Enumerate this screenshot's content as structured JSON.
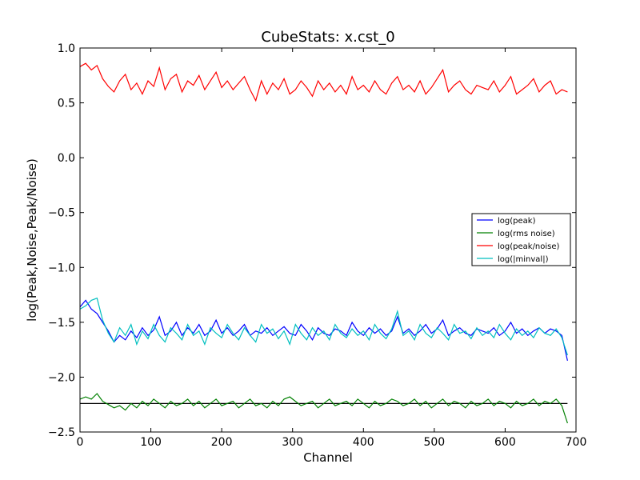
{
  "chart_data": {
    "type": "line",
    "title": "CubeStats: x.cst_0",
    "xlabel": "Channel",
    "ylabel": "log(Peak,Noise,Peak/Noise)",
    "xlim": [
      0,
      700
    ],
    "ylim": [
      -2.5,
      1.0
    ],
    "xticks": [
      0,
      100,
      200,
      300,
      400,
      500,
      600,
      700
    ],
    "yticks": [
      1.0,
      0.5,
      0.0,
      -0.5,
      -1.0,
      -1.5,
      -2.0,
      -2.5
    ],
    "xtick_labels": [
      "0",
      "100",
      "200",
      "300",
      "400",
      "500",
      "600",
      "700"
    ],
    "ytick_labels": [
      "1.0",
      "0.5",
      "0.0",
      "−0.5",
      "−1.0",
      "−1.5",
      "−2.0",
      "−2.5"
    ],
    "grid": false,
    "legend_position": "center-right",
    "series": [
      {
        "name": "log(peak)",
        "color": "#0000ff",
        "x": [
          0,
          8,
          16,
          24,
          32,
          40,
          48,
          56,
          64,
          72,
          80,
          88,
          96,
          104,
          112,
          120,
          128,
          136,
          144,
          152,
          160,
          168,
          176,
          184,
          192,
          200,
          208,
          216,
          224,
          232,
          240,
          248,
          256,
          264,
          272,
          280,
          288,
          296,
          304,
          312,
          320,
          328,
          336,
          344,
          352,
          360,
          368,
          376,
          384,
          392,
          400,
          408,
          416,
          424,
          432,
          440,
          448,
          456,
          464,
          472,
          480,
          488,
          496,
          504,
          512,
          520,
          528,
          536,
          544,
          552,
          560,
          568,
          576,
          584,
          592,
          600,
          608,
          616,
          624,
          632,
          640,
          648,
          656,
          664,
          672,
          680,
          688
        ],
        "y": [
          -1.36,
          -1.3,
          -1.38,
          -1.42,
          -1.5,
          -1.58,
          -1.68,
          -1.62,
          -1.66,
          -1.58,
          -1.64,
          -1.55,
          -1.62,
          -1.57,
          -1.45,
          -1.62,
          -1.58,
          -1.5,
          -1.62,
          -1.55,
          -1.6,
          -1.52,
          -1.62,
          -1.58,
          -1.48,
          -1.6,
          -1.55,
          -1.62,
          -1.58,
          -1.52,
          -1.62,
          -1.58,
          -1.6,
          -1.55,
          -1.62,
          -1.58,
          -1.54,
          -1.6,
          -1.62,
          -1.52,
          -1.58,
          -1.66,
          -1.55,
          -1.6,
          -1.62,
          -1.56,
          -1.58,
          -1.62,
          -1.5,
          -1.58,
          -1.62,
          -1.55,
          -1.6,
          -1.56,
          -1.62,
          -1.58,
          -1.45,
          -1.6,
          -1.56,
          -1.62,
          -1.58,
          -1.52,
          -1.6,
          -1.56,
          -1.48,
          -1.62,
          -1.58,
          -1.55,
          -1.6,
          -1.62,
          -1.56,
          -1.58,
          -1.6,
          -1.55,
          -1.62,
          -1.58,
          -1.5,
          -1.6,
          -1.56,
          -1.62,
          -1.58,
          -1.55,
          -1.6,
          -1.56,
          -1.58,
          -1.62,
          -1.85
        ]
      },
      {
        "name": "log(rms noise)",
        "color": "#008000",
        "x": [
          0,
          8,
          16,
          24,
          32,
          40,
          48,
          56,
          64,
          72,
          80,
          88,
          96,
          104,
          112,
          120,
          128,
          136,
          144,
          152,
          160,
          168,
          176,
          184,
          192,
          200,
          208,
          216,
          224,
          232,
          240,
          248,
          256,
          264,
          272,
          280,
          288,
          296,
          304,
          312,
          320,
          328,
          336,
          344,
          352,
          360,
          368,
          376,
          384,
          392,
          400,
          408,
          416,
          424,
          432,
          440,
          448,
          456,
          464,
          472,
          480,
          488,
          496,
          504,
          512,
          520,
          528,
          536,
          544,
          552,
          560,
          568,
          576,
          584,
          592,
          600,
          608,
          616,
          624,
          632,
          640,
          648,
          656,
          664,
          672,
          680,
          688
        ],
        "y": [
          -2.2,
          -2.18,
          -2.2,
          -2.15,
          -2.22,
          -2.25,
          -2.28,
          -2.26,
          -2.3,
          -2.24,
          -2.28,
          -2.22,
          -2.26,
          -2.2,
          -2.24,
          -2.28,
          -2.22,
          -2.26,
          -2.24,
          -2.2,
          -2.26,
          -2.22,
          -2.28,
          -2.24,
          -2.2,
          -2.26,
          -2.24,
          -2.22,
          -2.28,
          -2.24,
          -2.2,
          -2.26,
          -2.24,
          -2.28,
          -2.22,
          -2.26,
          -2.2,
          -2.18,
          -2.22,
          -2.26,
          -2.24,
          -2.22,
          -2.28,
          -2.24,
          -2.2,
          -2.26,
          -2.24,
          -2.22,
          -2.26,
          -2.2,
          -2.24,
          -2.28,
          -2.22,
          -2.26,
          -2.24,
          -2.2,
          -2.22,
          -2.26,
          -2.24,
          -2.2,
          -2.26,
          -2.22,
          -2.28,
          -2.24,
          -2.2,
          -2.26,
          -2.22,
          -2.24,
          -2.28,
          -2.22,
          -2.26,
          -2.24,
          -2.2,
          -2.26,
          -2.22,
          -2.24,
          -2.28,
          -2.22,
          -2.26,
          -2.24,
          -2.2,
          -2.26,
          -2.22,
          -2.24,
          -2.2,
          -2.26,
          -2.42
        ]
      },
      {
        "name": "log(peak/noise)",
        "color": "#ff0000",
        "x": [
          0,
          8,
          16,
          24,
          32,
          40,
          48,
          56,
          64,
          72,
          80,
          88,
          96,
          104,
          112,
          120,
          128,
          136,
          144,
          152,
          160,
          168,
          176,
          184,
          192,
          200,
          208,
          216,
          224,
          232,
          240,
          248,
          256,
          264,
          272,
          280,
          288,
          296,
          304,
          312,
          320,
          328,
          336,
          344,
          352,
          360,
          368,
          376,
          384,
          392,
          400,
          408,
          416,
          424,
          432,
          440,
          448,
          456,
          464,
          472,
          480,
          488,
          496,
          504,
          512,
          520,
          528,
          536,
          544,
          552,
          560,
          568,
          576,
          584,
          592,
          600,
          608,
          616,
          624,
          632,
          640,
          648,
          656,
          664,
          672,
          680,
          688
        ],
        "y": [
          0.83,
          0.86,
          0.8,
          0.84,
          0.72,
          0.65,
          0.6,
          0.7,
          0.76,
          0.62,
          0.68,
          0.58,
          0.7,
          0.65,
          0.82,
          0.62,
          0.72,
          0.76,
          0.6,
          0.7,
          0.66,
          0.75,
          0.62,
          0.7,
          0.78,
          0.64,
          0.7,
          0.62,
          0.68,
          0.74,
          0.62,
          0.52,
          0.7,
          0.58,
          0.68,
          0.62,
          0.72,
          0.58,
          0.62,
          0.7,
          0.64,
          0.56,
          0.7,
          0.62,
          0.68,
          0.6,
          0.66,
          0.58,
          0.74,
          0.62,
          0.66,
          0.6,
          0.7,
          0.62,
          0.58,
          0.68,
          0.74,
          0.62,
          0.66,
          0.6,
          0.7,
          0.58,
          0.64,
          0.72,
          0.8,
          0.6,
          0.66,
          0.7,
          0.62,
          0.58,
          0.66,
          0.64,
          0.62,
          0.7,
          0.6,
          0.66,
          0.74,
          0.58,
          0.62,
          0.66,
          0.72,
          0.6,
          0.66,
          0.7,
          0.58,
          0.62,
          0.6
        ]
      },
      {
        "name": "log(|minval|)",
        "color": "#00bfbf",
        "x": [
          0,
          8,
          16,
          24,
          32,
          40,
          48,
          56,
          64,
          72,
          80,
          88,
          96,
          104,
          112,
          120,
          128,
          136,
          144,
          152,
          160,
          168,
          176,
          184,
          192,
          200,
          208,
          216,
          224,
          232,
          240,
          248,
          256,
          264,
          272,
          280,
          288,
          296,
          304,
          312,
          320,
          328,
          336,
          344,
          352,
          360,
          368,
          376,
          384,
          392,
          400,
          408,
          416,
          424,
          432,
          440,
          448,
          456,
          464,
          472,
          480,
          488,
          496,
          504,
          512,
          520,
          528,
          536,
          544,
          552,
          560,
          568,
          576,
          584,
          592,
          600,
          608,
          616,
          624,
          632,
          640,
          648,
          656,
          664,
          672,
          680,
          688
        ],
        "y": [
          -1.38,
          -1.35,
          -1.3,
          -1.28,
          -1.48,
          -1.6,
          -1.68,
          -1.55,
          -1.62,
          -1.52,
          -1.7,
          -1.58,
          -1.65,
          -1.52,
          -1.62,
          -1.68,
          -1.55,
          -1.6,
          -1.66,
          -1.52,
          -1.62,
          -1.58,
          -1.7,
          -1.55,
          -1.6,
          -1.64,
          -1.52,
          -1.6,
          -1.66,
          -1.55,
          -1.62,
          -1.68,
          -1.52,
          -1.6,
          -1.56,
          -1.65,
          -1.58,
          -1.7,
          -1.52,
          -1.6,
          -1.66,
          -1.55,
          -1.62,
          -1.58,
          -1.66,
          -1.52,
          -1.6,
          -1.64,
          -1.56,
          -1.62,
          -1.58,
          -1.66,
          -1.52,
          -1.6,
          -1.65,
          -1.56,
          -1.4,
          -1.62,
          -1.58,
          -1.66,
          -1.52,
          -1.6,
          -1.64,
          -1.55,
          -1.6,
          -1.66,
          -1.52,
          -1.6,
          -1.58,
          -1.65,
          -1.55,
          -1.62,
          -1.58,
          -1.64,
          -1.52,
          -1.6,
          -1.66,
          -1.56,
          -1.62,
          -1.58,
          -1.64,
          -1.55,
          -1.6,
          -1.62,
          -1.56,
          -1.64,
          -1.8
        ]
      }
    ],
    "reference_lines": [
      {
        "color": "#000000",
        "y": -2.24,
        "x_range": [
          0,
          688
        ]
      }
    ]
  }
}
